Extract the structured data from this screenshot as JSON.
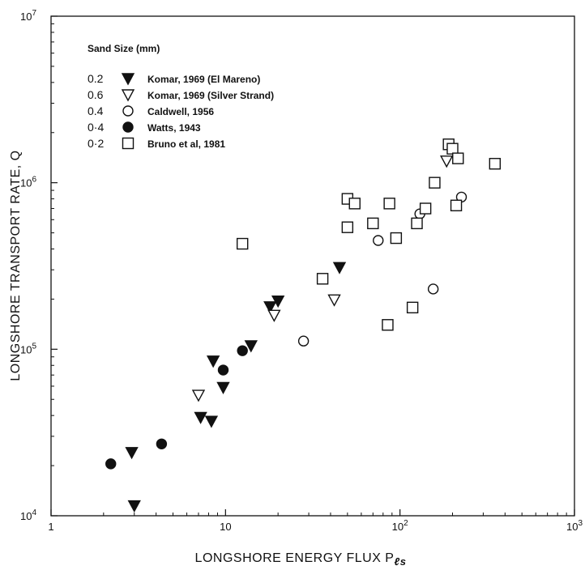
{
  "chart_data": {
    "type": "scatter",
    "x_scale": "log",
    "y_scale": "log",
    "xlim": [
      1,
      1000
    ],
    "ylim": [
      10000,
      10000000
    ],
    "grid": false,
    "xlabel": {
      "main": "LONGSHORE ENERGY FLUX P",
      "sub": "ℓs"
    },
    "ylabel": "LONGSHORE TRANSPORT RATE, Q",
    "x_ticks": [
      {
        "value": 1,
        "base": "1",
        "exp": ""
      },
      {
        "value": 10,
        "base": "10",
        "exp": ""
      },
      {
        "value": 100,
        "base": "10",
        "exp": "2"
      },
      {
        "value": 1000,
        "base": "10",
        "exp": "3"
      }
    ],
    "y_ticks": [
      {
        "value": 10000,
        "base": "10",
        "exp": "4"
      },
      {
        "value": 100000,
        "base": "10",
        "exp": "5"
      },
      {
        "value": 1000000,
        "base": "10",
        "exp": "6"
      },
      {
        "value": 10000000,
        "base": "10",
        "exp": "7"
      }
    ],
    "legend_position": "top-left",
    "legend_title": "Sand Size (mm)",
    "series": [
      {
        "name": "Komar, 1969 (El Mareno)",
        "size": "0.2",
        "marker": "triangle-down-filled",
        "points": [
          [
            2.9,
            24000
          ],
          [
            3.0,
            11500
          ],
          [
            7.2,
            39000
          ],
          [
            8.3,
            37000
          ],
          [
            8.5,
            85000
          ],
          [
            9.7,
            59000
          ],
          [
            14,
            105000
          ],
          [
            18,
            180000
          ],
          [
            20,
            195000
          ],
          [
            45,
            310000
          ]
        ]
      },
      {
        "name": "Komar, 1969 (Silver Strand)",
        "size": "0.6",
        "marker": "triangle-down-open",
        "points": [
          [
            7,
            53000
          ],
          [
            19,
            160000
          ],
          [
            42,
            198000
          ],
          [
            185,
            1350000
          ]
        ]
      },
      {
        "name": "Caldwell, 1956",
        "size": "0.4",
        "marker": "circle-open",
        "points": [
          [
            28,
            112000
          ],
          [
            75,
            450000
          ],
          [
            130,
            650000
          ],
          [
            155,
            230000
          ],
          [
            225,
            820000
          ]
        ]
      },
      {
        "name": "Watts, 1943",
        "size": "0·4",
        "marker": "circle-filled",
        "points": [
          [
            2.2,
            20500
          ],
          [
            4.3,
            27000
          ],
          [
            9.7,
            75000
          ],
          [
            12.5,
            98000
          ]
        ]
      },
      {
        "name": "Bruno et al, 1981",
        "size": "0·2",
        "marker": "square-open",
        "points": [
          [
            12.5,
            430000
          ],
          [
            36,
            265000
          ],
          [
            50,
            540000
          ],
          [
            50,
            800000
          ],
          [
            55,
            750000
          ],
          [
            70,
            570000
          ],
          [
            85,
            140000
          ],
          [
            87,
            750000
          ],
          [
            95,
            465000
          ],
          [
            118,
            178000
          ],
          [
            125,
            570000
          ],
          [
            140,
            700000
          ],
          [
            158,
            1000000
          ],
          [
            190,
            1700000
          ],
          [
            200,
            1600000
          ],
          [
            210,
            730000
          ],
          [
            215,
            1400000
          ],
          [
            350,
            1300000
          ]
        ]
      }
    ]
  }
}
